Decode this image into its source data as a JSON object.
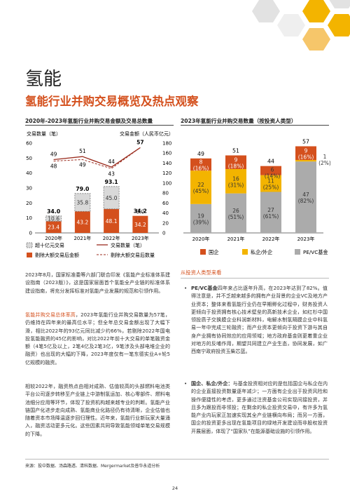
{
  "page": {
    "chapter": "氢能",
    "title": "氢能行业并购交易概览及热点观察",
    "page_number": "24",
    "source": "来源：投中数据、汤森路透、清科数据、Mergermarket及普华永道分析"
  },
  "colors": {
    "orange": "#d4501d",
    "yellow": "#f3b400",
    "gray": "#ababab",
    "lightgray": "#d9d9d9",
    "darkred": "#9b2d1f"
  },
  "chart_data": [
    {
      "type": "bar",
      "title": "2020年-2023年氢能行业并购交易金额及交易总数量",
      "ylabel_left": "交易数量（笔）",
      "ylabel_right": "交易金额（人民币亿元）",
      "categories": [
        "2020年",
        "2021年",
        "2022年",
        "2023年"
      ],
      "yleft_ticks": [
        "60",
        "50",
        "40",
        "30",
        "20",
        "10",
        "0"
      ],
      "yright_ticks": [
        "180",
        "160",
        "140",
        "120",
        "100",
        "80",
        "60",
        "40",
        "20",
        "0"
      ],
      "ylim_left": [
        0,
        60
      ],
      "ylim_right": [
        0,
        180
      ],
      "series": [
        {
          "name": "剔除大额交易后金额",
          "values": [
            23.4,
            43.2,
            48.1,
            34.2
          ]
        },
        {
          "name": "超十亿元交易",
          "values": [
            10.6,
            35.8,
            45.0,
            0.0
          ]
        },
        {
          "name": "交易数量（笔）",
          "values": [
            49,
            51,
            44,
            57
          ]
        },
        {
          "name": "剔除大额交易后数量",
          "values": [
            48,
            49,
            43,
            57
          ]
        }
      ],
      "totals": [
        "34.0",
        "79.0",
        "93.1",
        "34.2"
      ],
      "value_labels": {
        "base": [
          "23.4",
          "43.2",
          "48.1",
          "34.2"
        ],
        "top": [
          "10.6",
          "35.8",
          "45.0",
          "0.0"
        ],
        "count": [
          "49",
          "51",
          "44",
          "57"
        ],
        "count_ex": [
          "48",
          "49",
          "43",
          ""
        ]
      },
      "legend": [
        "超十亿元交易",
        "交易数量（笔）",
        "剔除大额交易后金额",
        "剔除大额交易后数量"
      ]
    },
    {
      "type": "bar",
      "title": "2023年氢能行业并购交易数量（按投资人类型）",
      "categories": [
        "2020年",
        "2021年",
        "2022年",
        "2023年"
      ],
      "totals": [
        "49",
        "51",
        "44",
        "57"
      ],
      "series": [
        {
          "name": "国企",
          "values": [
            8,
            9,
            6,
            9
          ]
        },
        {
          "name": "私企/外企",
          "values": [
            22,
            16,
            11,
            1
          ]
        },
        {
          "name": "PE/VC基金",
          "values": [
            19,
            26,
            27,
            47
          ]
        }
      ],
      "labels": {
        "state": [
          "8\n(16%)",
          "9\n(18%)",
          "6\n(14%)",
          "9\n(16%)"
        ],
        "private": [
          "22\n(45%)",
          "16\n(31%)",
          "11\n(25%)",
          "1\n(2%)"
        ],
        "pevc": [
          "19\n(39%)",
          "26\n(51%)",
          "27\n(61%)",
          "47\n(82%)"
        ]
      },
      "legend": [
        "国企",
        "私企/外企",
        "PE/VC基金"
      ]
    }
  ],
  "left_text": {
    "p1": "2023年8月，国家标准委等六部门联合印发《氢能产业标准体系建设指南（2023版）》，这是国家层面首个氢能全产业链的标准体系建设指南，将充分发挥标准对氢能产业发展的规范和引领作用。",
    "p2_lead": "氢能并购交易总体率高",
    "p2_rest": "，2023年氢能行业并购交易数量为57笔，仍维持在四年来的最高位水平；但全年总交易金额出现了大幅下滑，相比2022年的93亿元同比减少约66%，若剔除2022年国电投氢能融资的45亿的影响，对比2022年前十大交易的单笔融资金额（4笔5亿及以上，2笔4亿及2笔3亿，9笔涉及头部电堆企业的融资）也出现的大幅的下降，2023年度仅有一笔东德实业A+轮5亿规模的融资。",
    "p3": "相较2022年，融资热点由相对成熟、估值较高的头部燃料电池类平台公司逐步转移至产业链上中游制氢运加、核心零部件、燃料电池细分应用等环节，体现了投资机构越来越专业的判断。氢能产业链国产化进步走向成熟、氢能商业化路径仍有待清晰，企业估值也随着资本市场降温逐步回归理性。近年来，氢能行业新玩家大量涌入，融资活动更多元化。这些因素共同导致氢能领域单笔交易规模的下降。"
  },
  "right_text": {
    "subheading": "从投资人类型来看",
    "b1_lead": "PE/VC基金",
    "b1_rest": "四年来占比逐年升高，在2023年达到了82%。值得注意是，并不乏越来越多的拥有产业背景的企业VC及地方产业资本；整体来看氢能行业仍在早期孵化过程中，财务投资人更倾向于投资拥有核心技术壁垒的高新技术企业，如红杉中国领投质子交换膜企业科润新材料，电解水制氢隔膜企业中科氢易一年中完成三轮融资；而产业资本更倾向于投资下游与其自身产业拥有协同效应的应用领域；地方政府基金则更着重企业对地方的反哺作用，期望共同建立产业生态，协同发展，如广西南宁政府投资玉柴芯蓝。",
    "b2_lead": "国企、私企/外企：",
    "b2_rest": "与基金投资相对应的是包括国企与私企在内的企业直接投资数量逐年减少；一方面有企业出于投资风险和操作便捷性的考虑，更多通过注资基金公司实现间接投资，并且多为跟投而非领投；在剩余的私企投资交易中，有许多为氢能产业内玩家正加速实现其全产业链横向布局；而另一方面，国企的投资更多出现在氢能项目的绿地开发建设而非股权投资开展层面，体现了“国家队”在能源基础设施的引领作用。"
  }
}
